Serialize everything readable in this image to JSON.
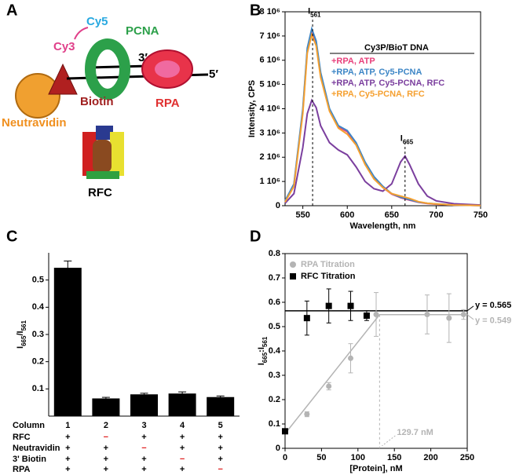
{
  "diagram": {
    "panel": "A",
    "labels": {
      "cy5": "Cy5",
      "cy3": "Cy3",
      "pcna": "PCNA",
      "end3": "3′",
      "end5": "5′",
      "biotin": "Biotin",
      "rpa": "RPA",
      "neutravidin": "Neutravidin",
      "rfc": "RFC"
    }
  },
  "chart_data": [
    {
      "type": "line",
      "panel": "B",
      "xlabel": "Wavelength, nm",
      "ylabel": "Intensity, CPS",
      "legend_title": "Cy3P/BioT DNA",
      "xlim": [
        530,
        750
      ],
      "xticks": [
        550,
        600,
        650,
        700,
        750
      ],
      "ylim": [
        0,
        8000000
      ],
      "yticks": [
        0,
        {
          "value": 1000000,
          "label": "1 10⁶"
        },
        {
          "value": 2000000,
          "label": "2 10⁶"
        },
        {
          "value": 3000000,
          "label": "3 10⁶"
        },
        {
          "value": 4000000,
          "label": "4 10⁶"
        },
        {
          "value": 5000000,
          "label": "5 10⁶"
        },
        {
          "value": 6000000,
          "label": "6 10⁶"
        },
        {
          "value": 7000000,
          "label": "7 10⁶"
        },
        {
          "value": 8000000,
          "label": "8 10⁶"
        }
      ],
      "x": [
        530,
        540,
        550,
        555,
        560,
        565,
        570,
        580,
        590,
        600,
        610,
        620,
        630,
        640,
        650,
        660,
        665,
        670,
        680,
        690,
        700,
        720,
        750
      ],
      "series": [
        {
          "name": "+RPA, ATP",
          "color": "#e8417c",
          "values": [
            200000,
            850000,
            3900000,
            6400000,
            7150000,
            6700000,
            5400000,
            3950000,
            3250000,
            3050000,
            2550000,
            1750000,
            1150000,
            750000,
            480000,
            330000,
            280000,
            230000,
            140000,
            90000,
            60000,
            30000,
            10000
          ]
        },
        {
          "name": "+RPA, ATP, Cy5-PCNA",
          "color": "#3d86c6",
          "values": [
            200000,
            900000,
            4000000,
            6500000,
            7300000,
            6800000,
            5500000,
            4000000,
            3300000,
            3100000,
            2600000,
            1800000,
            1200000,
            800000,
            500000,
            350000,
            300000,
            250000,
            150000,
            100000,
            70000,
            30000,
            10000
          ]
        },
        {
          "name": "+RPA, ATP, Cy5-PCNA, RFC",
          "color": "#7b3f9e",
          "values": [
            100000,
            500000,
            2400000,
            3800000,
            4350000,
            4050000,
            3300000,
            2600000,
            2300000,
            2100000,
            1600000,
            1000000,
            700000,
            600000,
            900000,
            1800000,
            2050000,
            1700000,
            900000,
            400000,
            200000,
            80000,
            30000
          ]
        },
        {
          "name": "+RPA, Cy5-PCNA, RFC",
          "color": "#f5a030",
          "values": [
            150000,
            800000,
            3800000,
            6300000,
            7050000,
            6600000,
            5300000,
            3900000,
            3200000,
            2950000,
            2500000,
            1700000,
            1100000,
            750000,
            500000,
            400000,
            350000,
            300000,
            170000,
            100000,
            70000,
            30000,
            10000
          ]
        }
      ],
      "annotations": [
        {
          "text": [
            "I",
            "561"
          ],
          "x": 561,
          "y": 7300000
        },
        {
          "text": [
            "I",
            "665"
          ],
          "x": 665,
          "y": 2050000
        }
      ]
    },
    {
      "type": "bar",
      "panel": "C",
      "ylabel": [
        "I",
        "665",
        "/I",
        "561"
      ],
      "categories": [
        "1",
        "2",
        "3",
        "4",
        "5"
      ],
      "values": [
        0.545,
        0.065,
        0.08,
        0.083,
        0.07
      ],
      "errors": [
        0.025,
        0.004,
        0.004,
        0.006,
        0.004
      ],
      "color": "#000000",
      "ylim": [
        0,
        0.6
      ],
      "yticks": [
        0.1,
        0.2,
        0.3,
        0.4,
        0.5
      ],
      "table_header": "Column",
      "table": [
        {
          "label": "RFC",
          "cells": [
            "+",
            "−",
            "+",
            "+",
            "+"
          ]
        },
        {
          "label": "Neutravidin",
          "cells": [
            "+",
            "+",
            "−",
            "+",
            "+"
          ]
        },
        {
          "label": "3' Biotin",
          "cells": [
            "+",
            "+",
            "+",
            "−",
            "+"
          ]
        },
        {
          "label": "RPA",
          "cells": [
            "+",
            "+",
            "+",
            "+",
            "−"
          ]
        }
      ]
    },
    {
      "type": "scatter",
      "panel": "D",
      "xlabel": "[Protein], nM",
      "ylabel": [
        "I",
        "665",
        ":I",
        "561"
      ],
      "xlim": [
        0,
        250
      ],
      "xticks": [
        0,
        50,
        100,
        150,
        200,
        250
      ],
      "ylim": [
        0,
        0.8
      ],
      "yticks": [
        0,
        0.1,
        0.2,
        0.3,
        0.4,
        0.5,
        0.6,
        0.7,
        0.8
      ],
      "series": [
        {
          "name": "RPA Titration",
          "color": "#b4b4b4",
          "marker": "circle",
          "x": [
            0,
            30,
            60,
            90,
            125,
            195,
            225,
            245
          ],
          "values": [
            0.07,
            0.14,
            0.255,
            0.37,
            0.55,
            0.55,
            0.535,
            0.55
          ],
          "errors": [
            0.01,
            0.01,
            0.015,
            0.06,
            0.09,
            0.08,
            0.1,
            0.02
          ]
        },
        {
          "name": "RFC Titration",
          "color": "#000000",
          "marker": "square",
          "x": [
            0,
            30,
            60,
            90,
            112
          ],
          "values": [
            0.07,
            0.535,
            0.585,
            0.585,
            0.545
          ],
          "errors": [
            0.01,
            0.07,
            0.07,
            0.06,
            0.02
          ]
        }
      ],
      "fits": [
        {
          "color": "#b4b4b4",
          "x": [
            0,
            129.7,
            250
          ],
          "y": [
            0.06,
            0.549,
            0.549
          ]
        },
        {
          "color": "#000000",
          "x": [
            0,
            250
          ],
          "y": [
            0.565,
            0.565
          ]
        }
      ],
      "annotations": [
        {
          "text": "y = 0.565",
          "y": 0.565,
          "color": "#000000"
        },
        {
          "text": "y = 0.549",
          "y": 0.549,
          "color": "#b4b4b4"
        },
        {
          "text": "129.7 nM",
          "x": 129.7,
          "y": 0.549,
          "color": "#b4b4b4"
        }
      ]
    }
  ]
}
